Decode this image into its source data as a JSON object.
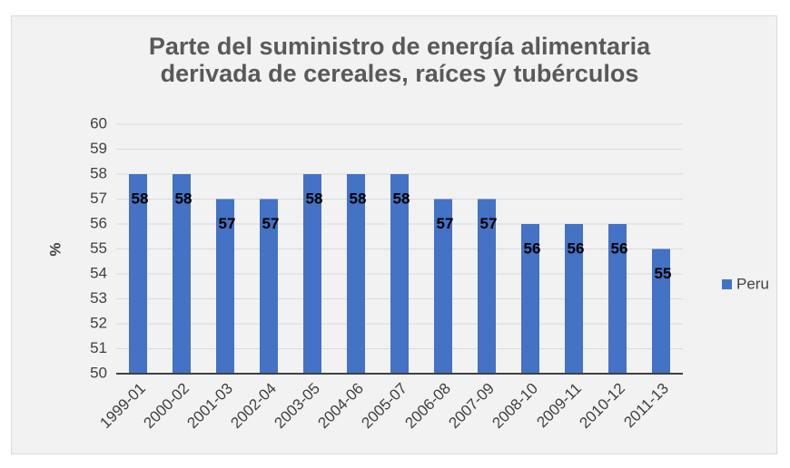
{
  "chart_data": {
    "type": "bar",
    "title": "Parte del suministro de energía alimentaria derivada de cereales, raíces y tubérculos",
    "y_label": "%",
    "categories": [
      "1999-01",
      "2000-02",
      "2001-03",
      "2002-04",
      "2003-05",
      "2004-06",
      "2005-07",
      "2006-08",
      "2007-09",
      "2008-10",
      "2009-11",
      "2010-12",
      "2011-13"
    ],
    "series": [
      {
        "name": "Peru",
        "color": "#4472c4",
        "values": [
          58,
          58,
          57,
          57,
          58,
          58,
          58,
          57,
          57,
          56,
          56,
          56,
          55
        ]
      }
    ],
    "ylim": [
      50,
      60
    ],
    "yticks": [
      50,
      51,
      52,
      53,
      54,
      55,
      56,
      57,
      58,
      59,
      60
    ],
    "grid": true,
    "legend": "right"
  }
}
